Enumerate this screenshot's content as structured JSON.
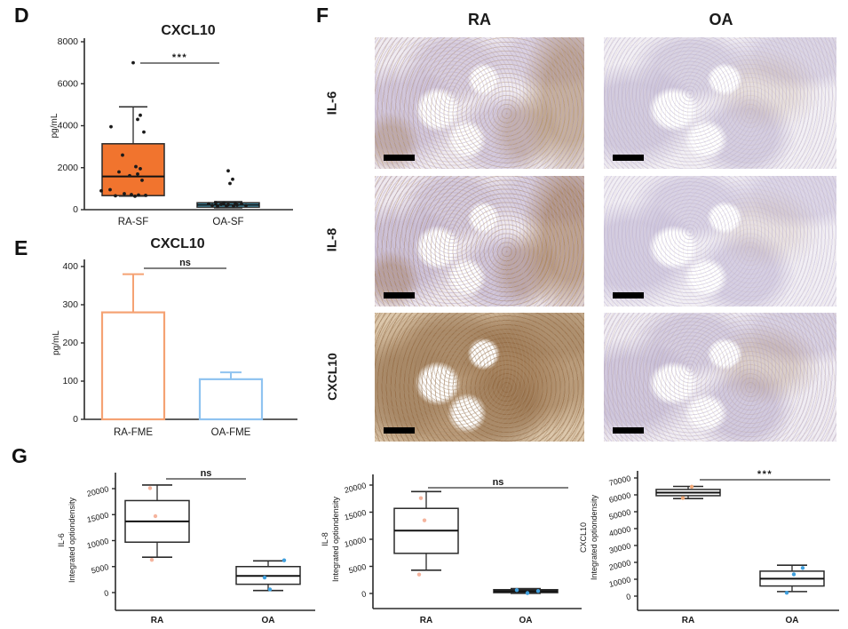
{
  "panels": {
    "D": "D",
    "E": "E",
    "F": "F",
    "G": "G"
  },
  "f_panel": {
    "columns": [
      "RA",
      "OA"
    ],
    "rows": [
      "IL-6",
      "IL-8",
      "CXCL10"
    ]
  },
  "colors": {
    "ink": "#2a2a2a",
    "ra_sf_box_fill": "#f1742e",
    "oa_sf_box_fill": "#55c4e9",
    "ra_fme_outline": "#f5a273",
    "oa_fme_outline": "#8fc3f0",
    "ra_point": "#f5b49e",
    "oa_point": "#3f9fdd",
    "sig_line": "#666666"
  },
  "micrographs": [
    {
      "row": "IL-6",
      "col": "RA",
      "appearance": "synovium with moderate brown DAB staining along right edge",
      "base": "#f0ebf0",
      "tissue": "#b9a9c7",
      "stain": "#9c7448",
      "stain_opacity": 0.5,
      "pattern": "edge"
    },
    {
      "row": "IL-6",
      "col": "OA",
      "appearance": "pale lavender tissue, minimal staining",
      "base": "#f2eff4",
      "tissue": "#b9aecd",
      "stain": "#a8845c",
      "stain_opacity": 0.16,
      "pattern": "faint"
    },
    {
      "row": "IL-8",
      "col": "RA",
      "appearance": "brown staining scattered through folds and right band",
      "base": "#efe9ee",
      "tissue": "#b3a3c3",
      "stain": "#95683c",
      "stain_opacity": 0.55,
      "pattern": "edge"
    },
    {
      "row": "IL-8",
      "col": "OA",
      "appearance": "pale lavender tissue, minimal staining",
      "base": "#f1eef4",
      "tissue": "#bbb0d0",
      "stain": "#a8845c",
      "stain_opacity": 0.13,
      "pattern": "faint"
    },
    {
      "row": "CXCL10",
      "col": "RA",
      "appearance": "strong diffuse brown staining across tissue",
      "base": "#dcc7ab",
      "tissue": "#a98f72",
      "stain": "#8a5f36",
      "stain_opacity": 0.8,
      "pattern": "full"
    },
    {
      "row": "CXCL10",
      "col": "OA",
      "appearance": "pale lavender tissue with light brown tint",
      "base": "#f0ecf2",
      "tissue": "#b5a8c8",
      "stain": "#9a7450",
      "stain_opacity": 0.25,
      "pattern": "faint"
    }
  ],
  "chart_data": [
    {
      "id": "panel-D",
      "type": "box",
      "title": "CXCL10",
      "ylabel": "pg/mL",
      "ylim": [
        0,
        8000
      ],
      "yticks": [
        0,
        2000,
        4000,
        6000,
        8000
      ],
      "significance": "***",
      "groups": [
        {
          "label": "RA-SF",
          "box_fill": "#f1742e",
          "point_color": "#1a1a1a",
          "q1": 670,
          "median": 1580,
          "q3": 3140,
          "whisker_low": 650,
          "whisker_high": 4900,
          "points": [
            [
              0,
              7000
            ],
            [
              8,
              4500
            ],
            [
              5,
              4300
            ],
            [
              -25,
              3950
            ],
            [
              12,
              3700
            ],
            [
              -12,
              2600
            ],
            [
              3,
              2050
            ],
            [
              8,
              1950
            ],
            [
              -16,
              1800
            ],
            [
              5,
              1700
            ],
            [
              -4,
              1620
            ],
            [
              10,
              1400
            ],
            [
              -26,
              950
            ],
            [
              -36,
              900
            ],
            [
              -10,
              760
            ],
            [
              -2,
              720
            ],
            [
              6,
              700
            ],
            [
              14,
              680
            ],
            [
              -20,
              660
            ],
            [
              2,
              640
            ]
          ]
        },
        {
          "label": "OA-SF",
          "box_fill": "#55c4e9",
          "point_color": "#1a1a1a",
          "q1": 120,
          "median": 230,
          "q3": 330,
          "whisker_low": 90,
          "whisker_high": 380,
          "points": [
            [
              0,
              1850
            ],
            [
              5,
              1450
            ],
            [
              2,
              1250
            ],
            [
              -14,
              330
            ],
            [
              -5,
              315
            ],
            [
              8,
              300
            ],
            [
              -22,
              285
            ],
            [
              15,
              265
            ],
            [
              -8,
              250
            ],
            [
              0,
              240
            ],
            [
              10,
              225
            ],
            [
              -18,
              210
            ],
            [
              20,
              200
            ],
            [
              -2,
              190
            ],
            [
              6,
              175
            ],
            [
              -12,
              160
            ]
          ]
        }
      ]
    },
    {
      "id": "panel-E",
      "type": "bar",
      "title": "CXCL10",
      "ylabel": "pg/mL",
      "ylim": [
        0,
        400
      ],
      "yticks": [
        0,
        100,
        200,
        300,
        400
      ],
      "significance": "ns",
      "groups": [
        {
          "label": "RA-FME",
          "outline": "#f5a273",
          "value": 280,
          "error_high": 380
        },
        {
          "label": "OA-FME",
          "outline": "#8fc3f0",
          "value": 105,
          "error_high": 123
        }
      ]
    },
    {
      "id": "panel-G-IL6",
      "type": "box",
      "ylabel_lines": [
        "IL-6",
        "Integrated optiondensity"
      ],
      "ylim": [
        0,
        22000
      ],
      "yticks": [
        0,
        5000,
        10000,
        15000,
        20000
      ],
      "significance": "ns",
      "groups": [
        {
          "label": "RA",
          "box_fill": "#ffffff",
          "point_color": "#f5b49e",
          "q1": 9700,
          "median": 13700,
          "q3": 17700,
          "whisker_low": 6800,
          "whisker_high": 20700,
          "points": [
            [
              -8,
              20100
            ],
            [
              -2,
              14700
            ],
            [
              -6,
              6300
            ]
          ]
        },
        {
          "label": "OA",
          "box_fill": "#ffffff",
          "point_color": "#3f9fdd",
          "q1": 1600,
          "median": 3200,
          "q3": 5000,
          "whisker_low": 400,
          "whisker_high": 6100,
          "points": [
            [
              18,
              6200
            ],
            [
              -4,
              2900
            ],
            [
              2,
              600
            ]
          ]
        }
      ]
    },
    {
      "id": "panel-G-IL8",
      "type": "box",
      "ylabel_lines": [
        "IL-8",
        "Integrated optiondensity"
      ],
      "ylim": [
        0,
        22000
      ],
      "yticks": [
        0,
        5000,
        10000,
        15000,
        20000
      ],
      "significance": "ns",
      "groups": [
        {
          "label": "RA",
          "box_fill": "#ffffff",
          "point_color": "#f5b49e",
          "q1": 7400,
          "median": 11600,
          "q3": 15700,
          "whisker_low": 4300,
          "whisker_high": 18800,
          "points": [
            [
              -6,
              17600
            ],
            [
              -2,
              13500
            ],
            [
              -8,
              3500
            ]
          ]
        },
        {
          "label": "OA",
          "box_fill": "#ffffff",
          "point_color": "#3f9fdd",
          "q1": 150,
          "median": 400,
          "q3": 700,
          "whisker_low": 30,
          "whisker_high": 900,
          "points": [
            [
              -10,
              620
            ],
            [
              2,
              80
            ],
            [
              14,
              450
            ]
          ]
        }
      ]
    },
    {
      "id": "panel-G-CXCL10",
      "type": "box",
      "ylabel_lines": [
        "CXCL10",
        "Integrated optiondensity"
      ],
      "ylim": [
        0,
        70000
      ],
      "yticks": [
        0,
        10000,
        20000,
        30000,
        40000,
        50000,
        60000,
        70000
      ],
      "significance": "***",
      "groups": [
        {
          "label": "RA",
          "box_fill": "#ffffff",
          "point_color": "#f0a878",
          "q1": 59500,
          "median": 61300,
          "q3": 63200,
          "whisker_low": 57800,
          "whisker_high": 65000,
          "points": [
            [
              4,
              64800
            ],
            [
              -6,
              58100
            ]
          ]
        },
        {
          "label": "OA",
          "box_fill": "#ffffff",
          "point_color": "#3f9fdd",
          "q1": 6000,
          "median": 10300,
          "q3": 14800,
          "whisker_low": 2700,
          "whisker_high": 18300,
          "points": [
            [
              12,
              16700
            ],
            [
              2,
              12900
            ],
            [
              -6,
              2000
            ]
          ]
        }
      ]
    }
  ]
}
